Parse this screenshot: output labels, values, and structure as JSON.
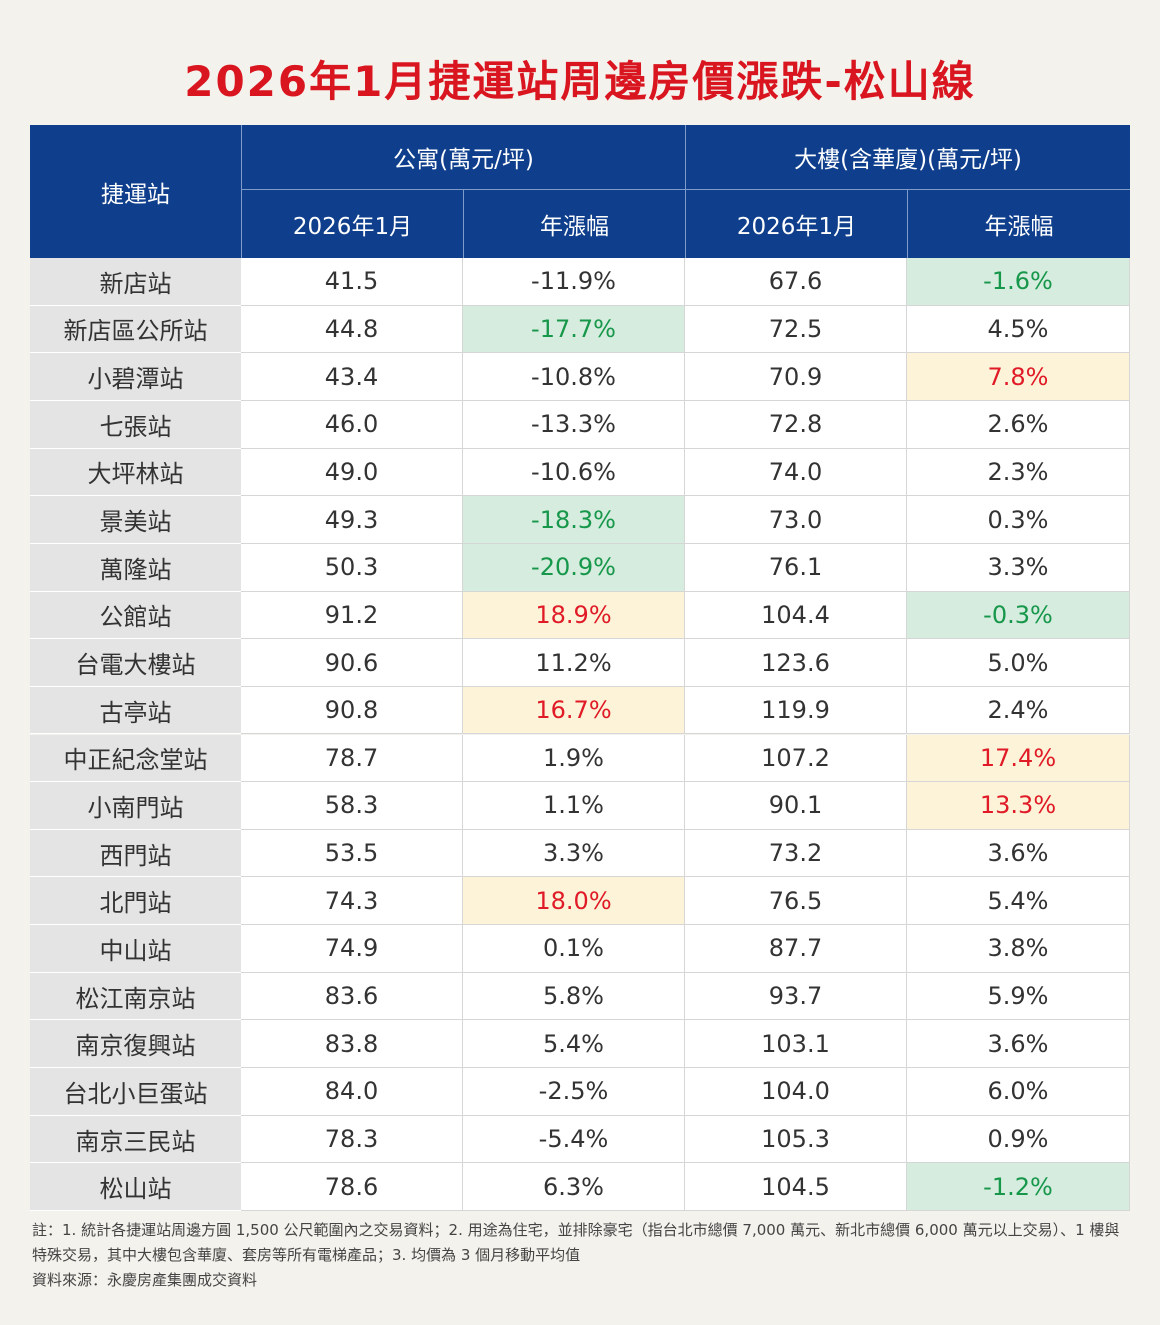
{
  "title": "2026年1月捷運站周邊房價漲跌-松山線",
  "table": {
    "header": {
      "station": "捷運站",
      "apartment": "公寓(萬元/坪)",
      "building": "大樓(含華廈)(萬元/坪)",
      "sub": [
        "2026年1月",
        "年漲幅",
        "2026年1月",
        "年漲幅"
      ]
    },
    "rows": [
      [
        "新店站",
        "41.5",
        "-11.9%",
        "67.6",
        "-1.6%"
      ],
      [
        "新店區公所站",
        "44.8",
        "-17.7%",
        "72.5",
        "4.5%"
      ],
      [
        "小碧潭站",
        "43.4",
        "-10.8%",
        "70.9",
        "7.8%"
      ],
      [
        "七張站",
        "46.0",
        "-13.3%",
        "72.8",
        "2.6%"
      ],
      [
        "大坪林站",
        "49.0",
        "-10.6%",
        "74.0",
        "2.3%"
      ],
      [
        "景美站",
        "49.3",
        "-18.3%",
        "73.0",
        "0.3%"
      ],
      [
        "萬隆站",
        "50.3",
        "-20.9%",
        "76.1",
        "3.3%"
      ],
      [
        "公館站",
        "91.2",
        "18.9%",
        "104.4",
        "-0.3%"
      ],
      [
        "台電大樓站",
        "90.6",
        "11.2%",
        "123.6",
        "5.0%"
      ],
      [
        "古亭站",
        "90.8",
        "16.7%",
        "119.9",
        "2.4%"
      ],
      [
        "中正紀念堂站",
        "78.7",
        "1.9%",
        "107.2",
        "17.4%"
      ],
      [
        "小南門站",
        "58.3",
        "1.1%",
        "90.1",
        "13.3%"
      ],
      [
        "西門站",
        "53.5",
        "3.3%",
        "73.2",
        "3.6%"
      ],
      [
        "北門站",
        "74.3",
        "18.0%",
        "76.5",
        "5.4%"
      ],
      [
        "中山站",
        "74.9",
        "0.1%",
        "87.7",
        "3.8%"
      ],
      [
        "松江南京站",
        "83.6",
        "5.8%",
        "93.7",
        "5.9%"
      ],
      [
        "南京復興站",
        "83.8",
        "5.4%",
        "103.1",
        "3.6%"
      ],
      [
        "台北小巨蛋站",
        "84.0",
        "-2.5%",
        "104.0",
        "6.0%"
      ],
      [
        "南京三民站",
        "78.3",
        "-5.4%",
        "105.3",
        "0.9%"
      ],
      [
        "松山站",
        "78.6",
        "6.3%",
        "104.5",
        "-1.2%"
      ]
    ]
  },
  "notes": [
    "註：1. 統計各捷運站周邊方圓 1,500 公尺範圍內之交易資料；2. 用途為住宅，並排除豪宅（指台北市總價 7,000 萬元、新北市總價 6,000 萬元以上交易）、1 樓與特殊交易，其中大樓包含華廈、套房等所有電梯產品；3. 均價為 3 個月移動平均值",
    "資料來源：永慶房產集團成交資料"
  ]
}
